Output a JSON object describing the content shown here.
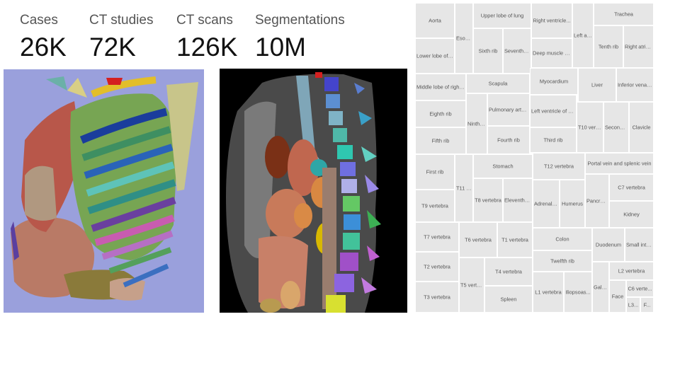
{
  "stats": [
    {
      "label": "Cases",
      "value": "26K"
    },
    {
      "label": "CT studies",
      "value": "72K"
    },
    {
      "label": "CT scans",
      "value": "126K"
    },
    {
      "label": "Segmentations",
      "value": "10M"
    }
  ],
  "colors": {
    "render_background": "#9aa0dc",
    "ct_background": "#000000",
    "treemap_cell": "#e6e6e6",
    "treemap_text": "#555555"
  },
  "treemap_labels": [
    "Aorta",
    "Esoph...",
    "Upper lobe of lung",
    "Right ventricle...",
    "Left atr...",
    "Trachea",
    "Lower lobe of l...",
    "Sixth rib",
    "Seventh rib",
    "Deep muscle of...",
    "Tenth rib",
    "Right atrium",
    "Middle lobe of right...",
    "Scapula",
    "Myocardium",
    "Liver",
    "Inferior vena c...",
    "Eighth rib",
    "Ninth rib",
    "Pulmonary artery",
    "Left ventricle of h...",
    "T10 verte...",
    "Second rib",
    "Clavicle",
    "Fifth rib",
    "Fourth rib",
    "Third rib",
    "First rib",
    "T11 ve...",
    "Stomach",
    "T12 vertebra",
    "Portal vein and splenic vein",
    "T8 vertebra",
    "Eleventh rib",
    "Adrenal g...",
    "Humerus",
    "Pancreas",
    "C7 vertebra",
    "T9 vertebra",
    "Kidney",
    "T7 vertebra",
    "T6 vertebra",
    "T1 vertebra",
    "Colon",
    "Duodenum",
    "Small inte...",
    "T2 vertebra",
    "T4 vertebra",
    "Twelfth rib",
    "L2 vertebra",
    "T5 verte...",
    "L1 vertebra",
    "Iliopsoas...",
    "Gallbl...",
    "Face",
    "C6 verte...",
    "T3 vertebra",
    "Spleen",
    "L3...",
    "F..."
  ]
}
